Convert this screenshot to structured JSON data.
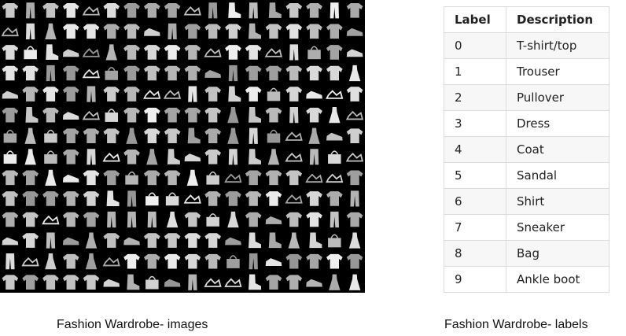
{
  "images_panel": {
    "rows": 14,
    "cols": 18,
    "background": "#000000",
    "item_color": "#d8d8d8"
  },
  "table": {
    "headers": {
      "label": "Label",
      "description": "Description"
    },
    "rows": [
      {
        "label": "0",
        "description": "T-shirt/top"
      },
      {
        "label": "1",
        "description": "Trouser"
      },
      {
        "label": "2",
        "description": "Pullover"
      },
      {
        "label": "3",
        "description": "Dress"
      },
      {
        "label": "4",
        "description": "Coat"
      },
      {
        "label": "5",
        "description": "Sandal"
      },
      {
        "label": "6",
        "description": "Shirt"
      },
      {
        "label": "7",
        "description": "Sneaker"
      },
      {
        "label": "8",
        "description": "Bag"
      },
      {
        "label": "9",
        "description": "Ankle boot"
      }
    ]
  },
  "captions": {
    "images": "Fashion Wardrobe- images",
    "labels": "Fashion Wardrobe- labels"
  }
}
